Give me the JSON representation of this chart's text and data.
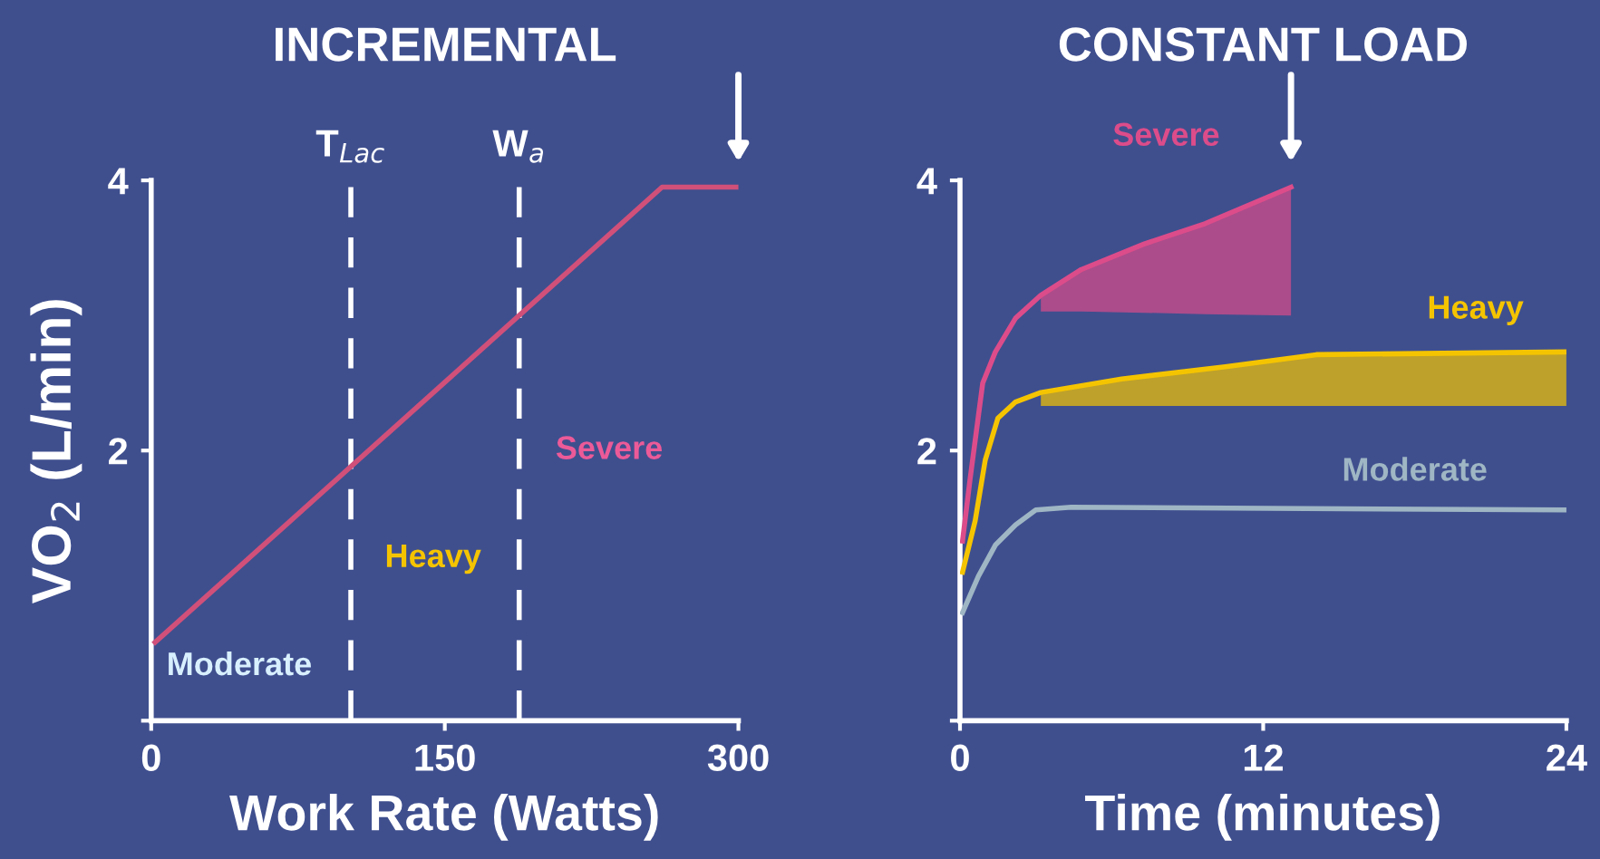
{
  "chart_data": [
    {
      "type": "line",
      "title": "INCREMENTAL",
      "xlabel": "Work Rate (Watts)",
      "ylabel": "VO$_{2}$ (L/min)",
      "series": [
        {
          "color": "#d0507a",
          "x": [
            2,
            261,
            300
          ],
          "values": [
            0.58,
            3.95,
            3.95
          ]
        }
      ],
      "xlim": [
        0,
        300
      ],
      "ylim": [
        0,
        4
      ],
      "xticks": [
        0,
        150,
        300
      ],
      "yticks": [
        {
          "value": 0,
          "label": null
        },
        2,
        4
      ],
      "ref_lines": [
        {
          "axis": "x",
          "value": 102,
          "label": "T$_{Lac}$",
          "color": "#ffffff",
          "line_style": "dashed"
        },
        {
          "axis": "x",
          "value": 188,
          "label": "W$_{a}$",
          "color": "#ffffff",
          "line_style": "dashed"
        }
      ],
      "annotations": [
        "Moderate",
        "Heavy",
        "Severe"
      ],
      "grid": false,
      "legend": false
    },
    {
      "type": "line",
      "title": "CONSTANT LOAD",
      "xlabel": "Time (minutes)",
      "series": [
        {
          "name": "Severe",
          "color": "#dc4c8a",
          "x": [
            0.1,
            0.4,
            0.9,
            1.4,
            2.2,
            3.2,
            4.8,
            7.3,
            9.7,
            13.1
          ],
          "values": [
            1.33,
            1.79,
            2.5,
            2.73,
            2.98,
            3.15,
            3.34,
            3.53,
            3.68,
            3.95
          ],
          "lower": [
            null,
            null,
            null,
            null,
            null,
            3.03,
            3.03,
            3.02,
            3.01,
            3.0
          ],
          "upper": [
            null,
            null,
            null,
            null,
            null,
            3.15,
            3.34,
            3.53,
            3.68,
            3.95
          ]
        },
        {
          "name": "Heavy",
          "color": "#f5c400",
          "x": [
            0.1,
            0.6,
            1.0,
            1.5,
            2.2,
            3.2,
            6.4,
            10.5,
            14.1,
            24
          ],
          "values": [
            1.1,
            1.48,
            1.93,
            2.24,
            2.36,
            2.43,
            2.53,
            2.62,
            2.71,
            2.73
          ],
          "lower": [
            null,
            null,
            null,
            null,
            null,
            2.33,
            2.33,
            2.33,
            2.33,
            2.33
          ],
          "upper": [
            null,
            null,
            null,
            null,
            null,
            2.43,
            2.53,
            2.62,
            2.71,
            2.73
          ]
        },
        {
          "name": "Moderate",
          "color": "#9fb6c4",
          "x": [
            0.1,
            0.73,
            1.4,
            2.2,
            3.0,
            4.4,
            24
          ],
          "values": [
            0.8,
            1.07,
            1.3,
            1.45,
            1.56,
            1.58,
            1.56
          ]
        }
      ],
      "xlim": [
        0,
        24
      ],
      "ylim": [
        0,
        4
      ],
      "xticks": [
        0,
        12,
        24
      ],
      "yticks": [
        {
          "value": 0,
          "label": null
        },
        2,
        4
      ],
      "grid": false,
      "legend": false
    }
  ]
}
